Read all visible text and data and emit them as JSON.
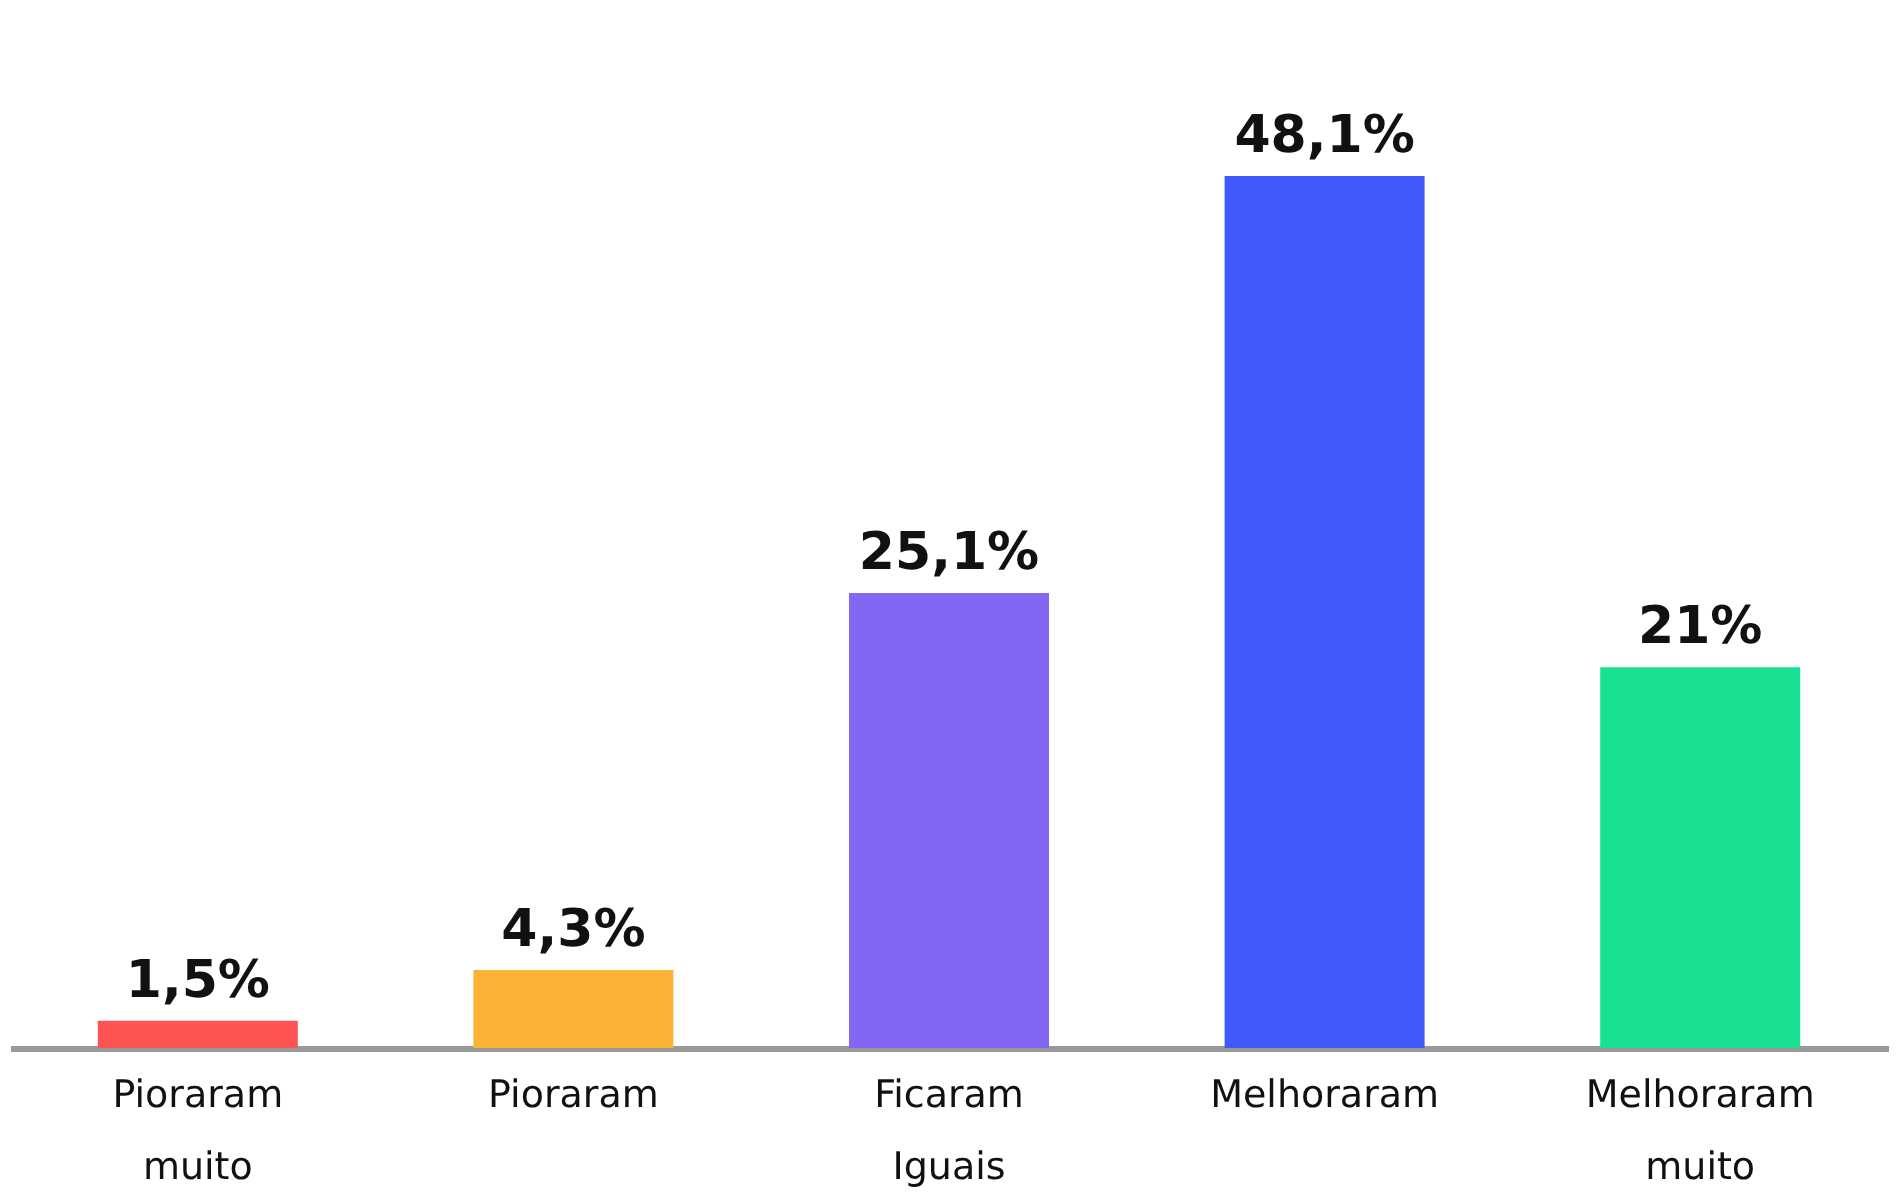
{
  "chart_data": {
    "type": "bar",
    "categories": [
      "Pioraram muito",
      "Pioraram",
      "Ficaram Iguais",
      "Melhoraram",
      "Melhoraram muito"
    ],
    "values": [
      1.5,
      4.3,
      25.1,
      48.1,
      21
    ],
    "colors": [
      "#ff5252",
      "#fbb336",
      "#8466f5",
      "#415afe",
      "#19e192"
    ],
    "value_labels": [
      "1,5%",
      "4,3%",
      "25,1%",
      "48,1%",
      "21%"
    ],
    "grid": false,
    "legend": false
  }
}
